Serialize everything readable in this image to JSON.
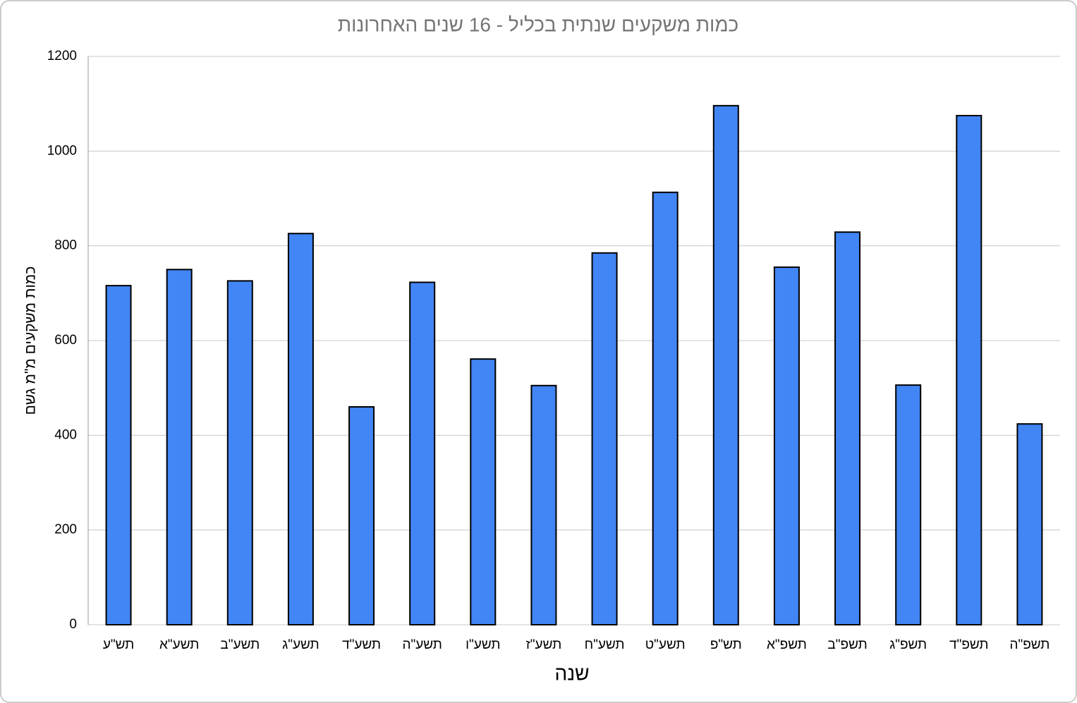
{
  "chart_data": {
    "type": "bar",
    "title": "כמות משקעים שנתית בכליל - 16 שנים האחרונות",
    "x_label": "שנה",
    "y_label": "כמות משקעים מ\"מ גשם",
    "categories": [
      "תש\"ע",
      "תשע\"א",
      "תשע\"ב",
      "תשע\"ג",
      "תשע\"ד",
      "תשע\"ה",
      "תשע\"ו",
      "תשע\"ז",
      "תשע\"ח",
      "תשע\"ט",
      "תש\"פ",
      "תשפ\"א",
      "תשפ\"ב",
      "תשפ\"ג",
      "תשפ\"ד",
      "תשפ\"ה"
    ],
    "values": [
      716,
      750,
      726,
      826,
      460,
      723,
      561,
      505,
      785,
      913,
      1096,
      755,
      829,
      506,
      1075,
      424
    ],
    "color": "#4285f4",
    "ylim": [
      0,
      1200
    ],
    "yticks": [
      0,
      200,
      400,
      600,
      800,
      1000,
      1200
    ],
    "grid": true
  }
}
